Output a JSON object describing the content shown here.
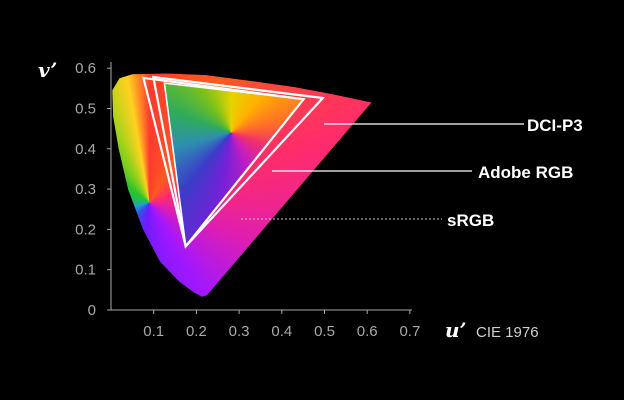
{
  "axes": {
    "x_title": "u’",
    "y_title": "v’",
    "caption": "CIE 1976",
    "x_ticks": [
      "0.1",
      "0.2",
      "0.3",
      "0.4",
      "0.5",
      "0.6",
      "0.7"
    ],
    "y_ticks": [
      "0",
      "0.1",
      "0.2",
      "0.3",
      "0.4",
      "0.5",
      "0.6"
    ]
  },
  "gamuts": [
    {
      "key": "dci",
      "label": "DCI-P3",
      "vertices": [
        [
          0.496,
          0.526
        ],
        [
          0.099,
          0.578
        ],
        [
          0.175,
          0.158
        ]
      ]
    },
    {
      "key": "adobe",
      "label": "Adobe RGB",
      "vertices": [
        [
          0.451,
          0.523
        ],
        [
          0.076,
          0.576
        ],
        [
          0.175,
          0.158
        ]
      ]
    },
    {
      "key": "srgb",
      "label": "sRGB",
      "vertices": [
        [
          0.451,
          0.523
        ],
        [
          0.125,
          0.563
        ],
        [
          0.175,
          0.158
        ]
      ]
    }
  ],
  "colors": {
    "background": "#000000",
    "outline": "#ffffff",
    "tick_text": "#a8a8a8"
  }
}
